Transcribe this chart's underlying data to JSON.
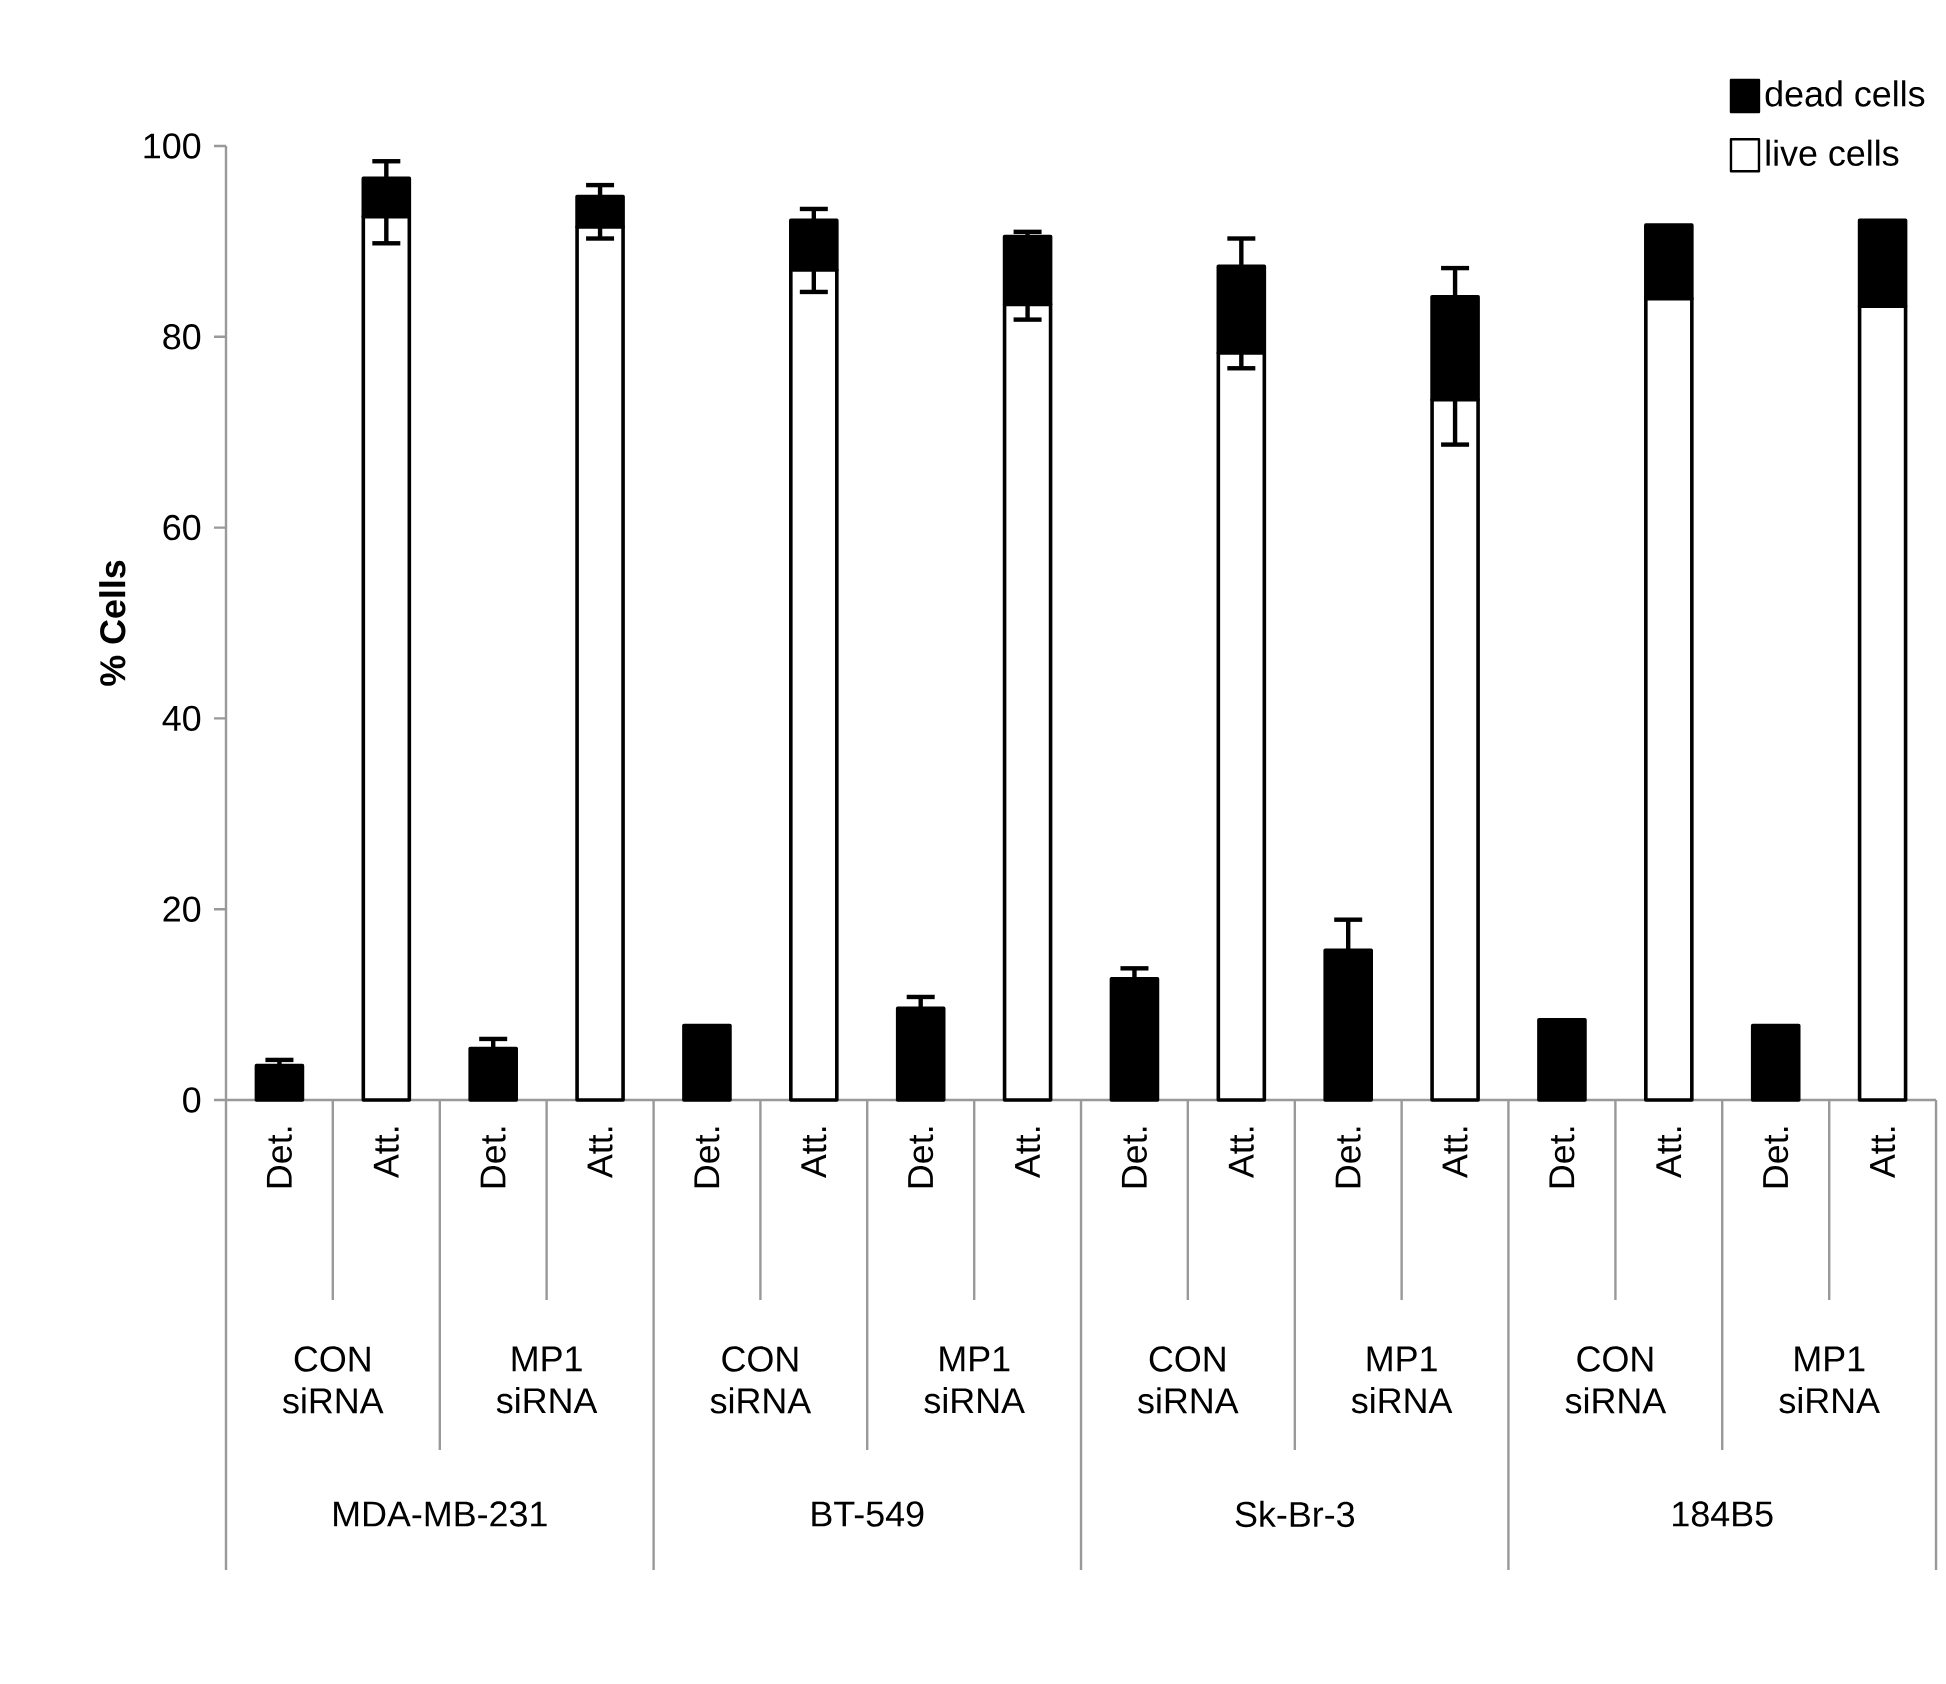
{
  "chart_data": {
    "type": "bar",
    "stacked": true,
    "ylabel": "% Cells",
    "categories": [
      "Det.",
      "Att.",
      "Det.",
      "Att.",
      "Det.",
      "Att.",
      "Det.",
      "Att.",
      "Det.",
      "Att.",
      "Det.",
      "Att.",
      "Det.",
      "Att.",
      "Det.",
      "Att."
    ],
    "series": [
      {
        "name": "live cells",
        "color": "#ffffff",
        "values": [
          0,
          92.6,
          0,
          91.5,
          0,
          87.0,
          0,
          83.4,
          0,
          78.3,
          0,
          73.4,
          0,
          84.0,
          0,
          83.2
        ],
        "errors": [
          null,
          2.8,
          null,
          1.2,
          null,
          2.3,
          null,
          1.6,
          null,
          1.6,
          null,
          4.7,
          null,
          null,
          null,
          null
        ]
      },
      {
        "name": "dead cells",
        "color": "#000000",
        "values": [
          3.6,
          4.0,
          5.4,
          3.2,
          7.8,
          5.2,
          9.6,
          7.1,
          12.7,
          9.1,
          15.7,
          10.8,
          8.4,
          7.7,
          7.8,
          9.0
        ],
        "errors": [
          0.6,
          1.8,
          1.0,
          1.2,
          null,
          1.2,
          1.2,
          0.5,
          1.1,
          2.9,
          3.2,
          3.0,
          null,
          null,
          null,
          null
        ]
      }
    ],
    "ylim": [
      0,
      100
    ],
    "yticks": [
      0,
      20,
      40,
      60,
      80,
      100
    ],
    "legend": "top right",
    "annotations": [
      "CON siRNA",
      "MP1 siRNA",
      "CON siRNA",
      "MP1 siRNA",
      "CON siRNA",
      "MP1 siRNA",
      "CON siRNA",
      "MP1 siRNA",
      "MDA-MB-231",
      "BT-549",
      "Sk-Br-3",
      "184B5"
    ]
  }
}
